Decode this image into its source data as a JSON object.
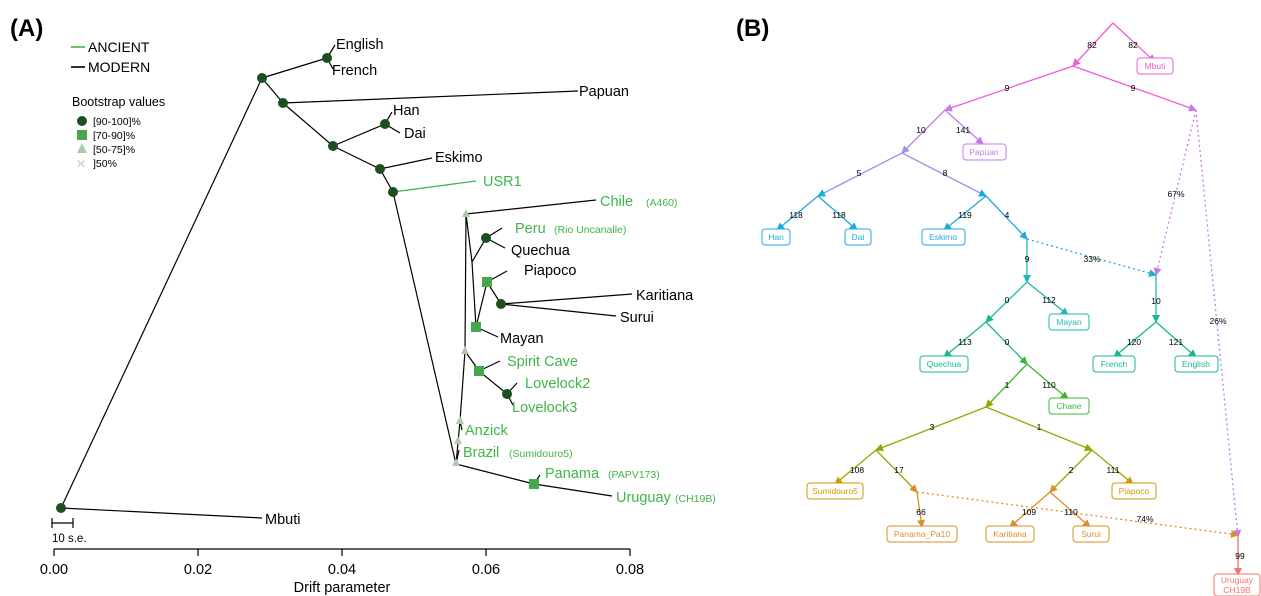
{
  "panelA": {
    "label": "(A)",
    "legend": {
      "ancient": "ANCIENT",
      "modern": "MODERN",
      "bootstrap_title": "Bootstrap values",
      "bootstrap_items": [
        "[90-100]%",
        "[70-90]%",
        "[50-75]%",
        "]50%"
      ]
    },
    "scale_bar": "10 s.e.",
    "axis": {
      "title": "Drift parameter",
      "ticks": [
        "0.00",
        "0.02",
        "0.04",
        "0.06",
        "0.08"
      ],
      "range": [
        0.0,
        0.08
      ]
    },
    "tips": {
      "english": "English",
      "french": "French",
      "papuan": "Papuan",
      "han": "Han",
      "dai": "Dai",
      "eskimo": "Eskimo",
      "usr1": "USR1",
      "chile": "Chile",
      "chile_sub": "(A460)",
      "peru": "Peru",
      "peru_sub": "(Rio Uncanalle)",
      "quechua": "Quechua",
      "piapoco": "Piapoco",
      "karitiana": "Karitiana",
      "surui": "Surui",
      "mayan": "Mayan",
      "spirit_cave": "Spirit Cave",
      "lovelock2": "Lovelock2",
      "lovelock3": "Lovelock3",
      "anzick": "Anzick",
      "brazil": "Brazil",
      "brazil_sub": "(Sumidouro5)",
      "panama": "Panama",
      "panama_sub": "(PAPV173)",
      "uruguay": "Uruguay",
      "uruguay_sub": "(CH19B)",
      "mbuti": "Mbuti"
    },
    "colors": {
      "ancient": "#3fb548",
      "modern": "#000000",
      "node_high": "#1c4e1e",
      "node_mid": "#46a84b",
      "node_low": "#a9cca9"
    }
  },
  "panelB": {
    "label": "(B)",
    "boxes": {
      "mbuti": "Mbuti",
      "papuan": "Papuan",
      "han": "Han",
      "dai": "Dai",
      "eskimo": "Eskimo",
      "mayan": "Mayan",
      "french": "French",
      "english": "English",
      "quechua": "Quechua",
      "chane": "Chane",
      "sumidouro5": "Sumidouro5",
      "piapoco": "Piapoco",
      "panama_pa10": "Panama_Pa10",
      "karitiana": "Karitiana",
      "surui": "Surui",
      "uruguay_1": "Uruguay",
      "uruguay_2": "CH19B"
    },
    "edges": {
      "root_left": "82",
      "root_mbuti": "82",
      "n1_left": "9",
      "n1_right": "9",
      "n2_left": "10",
      "n2_papuan": "141",
      "n3_left": "5",
      "n3_right": "8",
      "han": "118",
      "dai": "118",
      "eskimo": "119",
      "n5_down": "4",
      "n6_down": "9",
      "n7_left": "0",
      "mayan": "112",
      "quechua": "113",
      "n8_down": "0",
      "n9_left": "1",
      "chane": "110",
      "n10_left": "3",
      "n10_right": "1",
      "sumidouro5": "108",
      "n11_right": "17",
      "piapoco": "111",
      "n12_left": "2",
      "panama": "66",
      "karitiana": "109",
      "surui": "110",
      "eur_down": "10",
      "french": "120",
      "english": "121",
      "uru_down": "99"
    },
    "admixture": {
      "pct_33": "33%",
      "pct_67": "67%",
      "pct_26": "26%",
      "pct_74": "74%"
    },
    "colors": {
      "magenta": "#ee5cd6",
      "violet": "#c67ae8",
      "lavender": "#9a95ea",
      "sky": "#1ea9e0",
      "teal": "#19b9b5",
      "teal2": "#16b98e",
      "green": "#3cb932",
      "olive": "#94a600",
      "gold": "#cf9a00",
      "orange": "#dd8e28",
      "salmon": "#f4736b"
    }
  }
}
